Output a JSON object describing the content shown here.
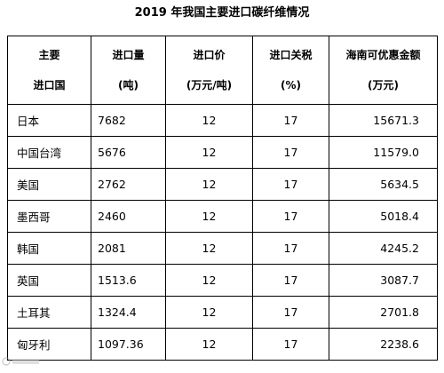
{
  "title": "2019 年我国主要进口碳纤维情况",
  "headers": [
    {
      "line1": "主要",
      "line2": "进口国"
    },
    {
      "line1": "进口量",
      "line2": "(吨)"
    },
    {
      "line1": "进口价",
      "line2": "(万元/吨)"
    },
    {
      "line1": "进口关税",
      "line2": "(%)"
    },
    {
      "line1": "海南可优惠金额",
      "line2": "(万元)"
    }
  ],
  "rows": [
    {
      "country": "日本",
      "qty": "7682",
      "price": "12",
      "tariff": "17",
      "benefit": "15671.3"
    },
    {
      "country": "中国台湾",
      "qty": "5676",
      "price": "12",
      "tariff": "17",
      "benefit": "11579.0"
    },
    {
      "country": "美国",
      "qty": "2762",
      "price": "12",
      "tariff": "17",
      "benefit": "5634.5"
    },
    {
      "country": "墨西哥",
      "qty": "2460",
      "price": "12",
      "tariff": "17",
      "benefit": "5018.4"
    },
    {
      "country": "韩国",
      "qty": "2081",
      "price": "12",
      "tariff": "17",
      "benefit": "4245.2"
    },
    {
      "country": "英国",
      "qty": "1513.6",
      "price": "12",
      "tariff": "17",
      "benefit": "3087.7"
    },
    {
      "country": "土耳其",
      "qty": "1324.4",
      "price": "12",
      "tariff": "17",
      "benefit": "2701.8"
    },
    {
      "country": "匈牙利",
      "qty": "1097.36",
      "price": "12",
      "tariff": "17",
      "benefit": "2238.6"
    }
  ]
}
